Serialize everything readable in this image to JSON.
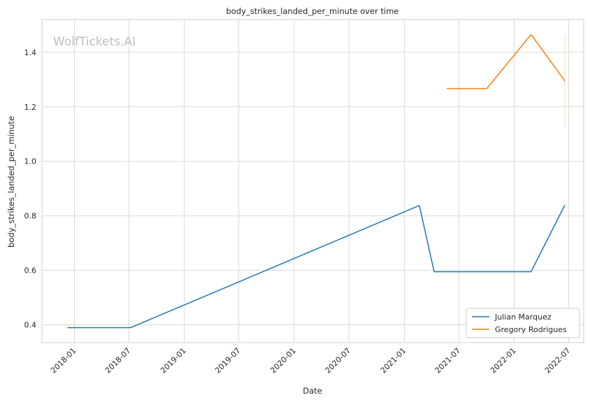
{
  "chart_data": {
    "type": "line",
    "title": "body_strikes_landed_per_minute over time",
    "xlabel": "Date",
    "ylabel": "body_strikes_landed_per_minute",
    "watermark": "WolfTickets.AI",
    "x_axis": {
      "min": "2017-09-15",
      "max": "2022-08-20",
      "ticks": [
        "2018-01",
        "2018-07",
        "2019-01",
        "2019-07",
        "2020-01",
        "2020-07",
        "2021-01",
        "2021-07",
        "2022-01",
        "2022-07"
      ]
    },
    "y_axis": {
      "min": 0.335,
      "max": 1.52,
      "ticks": [
        0.4,
        0.6,
        0.8,
        1.0,
        1.2,
        1.4
      ],
      "tick_labels": [
        "0.4",
        "0.6",
        "0.8",
        "1.0",
        "1.2",
        "1.4"
      ]
    },
    "grid": true,
    "legend_position": "lower-right",
    "series": [
      {
        "name": "Julian Marquez",
        "color": "#1f77b4",
        "points": [
          {
            "x": "2017-12-09",
            "y": 0.39
          },
          {
            "x": "2018-07-07",
            "y": 0.39
          },
          {
            "x": "2021-02-20",
            "y": 0.838
          },
          {
            "x": "2021-04-10",
            "y": 0.595
          },
          {
            "x": "2022-02-26",
            "y": 0.595
          },
          {
            "x": "2022-06-18",
            "y": 0.839
          }
        ]
      },
      {
        "name": "Gregory Rodrigues",
        "color": "#ff7f0e",
        "points": [
          {
            "x": "2021-05-22",
            "y": 1.267
          },
          {
            "x": "2021-10-02",
            "y": 1.267
          },
          {
            "x": "2022-02-26",
            "y": 1.465
          },
          {
            "x": "2022-06-18",
            "y": 1.295
          }
        ]
      }
    ]
  }
}
